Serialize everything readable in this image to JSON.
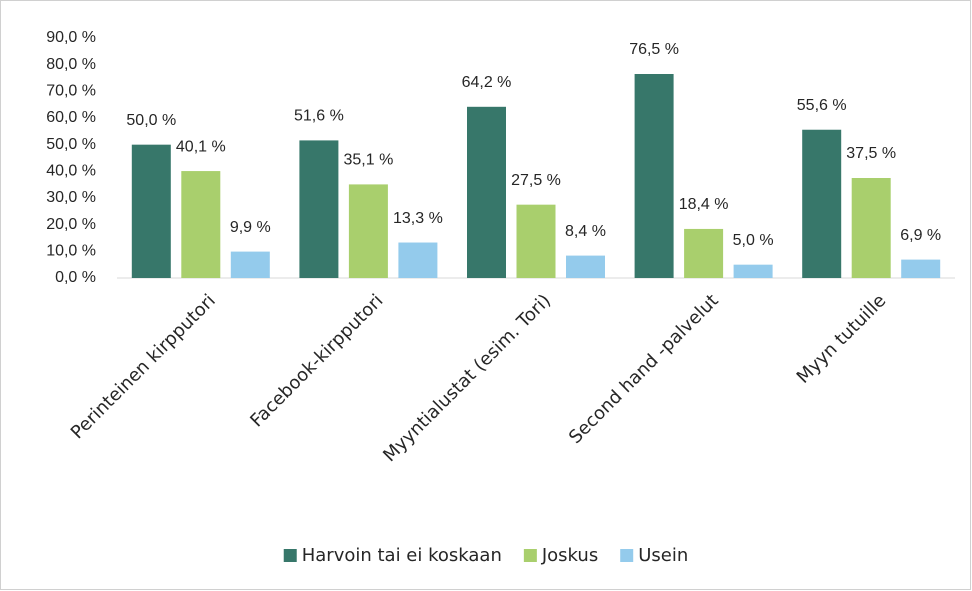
{
  "chart_data": {
    "type": "bar",
    "categories": [
      "Perinteinen kirpputori",
      "Facebook-kirpputori",
      "Myyntialustat (esim. Tori)",
      "Second hand -palvelut",
      "Myyn tutuille"
    ],
    "series": [
      {
        "name": "Harvoin tai ei koskaan",
        "color": "#37776a",
        "values": [
          50.0,
          51.6,
          64.2,
          76.5,
          55.6
        ],
        "value_labels": [
          "50,0 %",
          "51,6 %",
          "64,2 %",
          "76,5 %",
          "55,6 %"
        ]
      },
      {
        "name": "Joskus",
        "color": "#a9cf6d",
        "values": [
          40.1,
          35.1,
          27.5,
          18.4,
          37.5
        ],
        "value_labels": [
          "40,1 %",
          "35,1 %",
          "27,5 %",
          "18,4 %",
          "37,5 %"
        ]
      },
      {
        "name": "Usein",
        "color": "#94cbec",
        "values": [
          9.9,
          13.3,
          8.4,
          5.0,
          6.9
        ],
        "value_labels": [
          "9,9 %",
          "13,3 %",
          "8,4 %",
          "5,0 %",
          "6,9 %"
        ]
      }
    ],
    "ylim": [
      0,
      90
    ],
    "yticks": [
      {
        "value": 0,
        "label": "0,0 %"
      },
      {
        "value": 10,
        "label": "10,0 %"
      },
      {
        "value": 20,
        "label": "20,0 %"
      },
      {
        "value": 30,
        "label": "30,0 %"
      },
      {
        "value": 40,
        "label": "40,0 %"
      },
      {
        "value": 50,
        "label": "50,0 %"
      },
      {
        "value": 60,
        "label": "60,0 %"
      },
      {
        "value": 70,
        "label": "70,0 %"
      },
      {
        "value": 80,
        "label": "80,0 %"
      },
      {
        "value": 90,
        "label": "90,0 %"
      }
    ],
    "grid": false,
    "legend": "bottom"
  }
}
